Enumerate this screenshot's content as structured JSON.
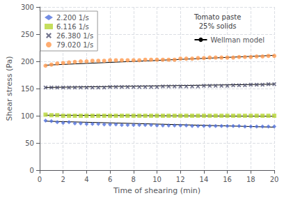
{
  "chart_data": {
    "type": "scatter",
    "xlabel": "Time of shearing (min)",
    "ylabel": "Shear stress (Pa)",
    "xlim": [
      0,
      20
    ],
    "ylim": [
      0,
      300
    ],
    "xticks": [
      0,
      2,
      4,
      6,
      8,
      10,
      12,
      14,
      16,
      18,
      20
    ],
    "yticks": [
      0,
      50,
      100,
      150,
      200,
      250,
      300
    ],
    "grid": true,
    "legend": "upper left",
    "annotation": "Tomato paste\n25% solids",
    "series": [
      {
        "name": "Wellman model",
        "type": "line",
        "color": "black",
        "x": [
          0.5,
          20.0
        ],
        "values": [
          90,
          79
        ]
      },
      {
        "name": "2.200 1/s",
        "type": "scatter",
        "marker": "diamond",
        "x": [
          0.5,
          1.0,
          1.5,
          2.0,
          2.5,
          3.0,
          3.5,
          4.0,
          4.5,
          5.0,
          5.5,
          6.0,
          6.5,
          7.0,
          7.5,
          8.0,
          8.5,
          9.0,
          9.5,
          10.0,
          10.5,
          11.0,
          11.5,
          12.0,
          12.5,
          13.0,
          13.5,
          14.0,
          14.5,
          15.0,
          15.5,
          16.0,
          16.5,
          17.0,
          17.5,
          18.0,
          18.5,
          19.0,
          19.5,
          20.0
        ],
        "values": [
          91,
          90,
          88,
          87,
          88,
          86,
          86,
          85,
          85,
          85,
          84,
          84,
          84,
          83,
          83,
          83,
          83,
          83,
          83,
          82,
          82,
          82,
          82,
          82,
          82,
          81,
          81,
          81,
          81,
          81,
          81,
          81,
          81,
          81,
          80,
          80,
          80,
          80,
          80,
          80
        ]
      },
      {
        "name": "Wellman model",
        "type": "line",
        "color": "black",
        "x": [
          0.5,
          20.0
        ],
        "values": [
          101,
          99
        ]
      },
      {
        "name": "6.116 1/s",
        "type": "scatter",
        "marker": "square",
        "x": [
          0.5,
          1.0,
          1.5,
          2.0,
          2.5,
          3.0,
          3.5,
          4.0,
          4.5,
          5.0,
          5.5,
          6.0,
          6.5,
          7.0,
          7.5,
          8.0,
          8.5,
          9.0,
          9.5,
          10.0,
          10.5,
          11.0,
          11.5,
          12.0,
          12.5,
          13.0,
          13.5,
          14.0,
          14.5,
          15.0,
          15.5,
          16.0,
          16.5,
          17.0,
          17.5,
          18.0,
          18.5,
          19.0,
          19.5,
          20.0
        ],
        "values": [
          102,
          101,
          101,
          100,
          100,
          100,
          100,
          100,
          100,
          100,
          100,
          100,
          100,
          100,
          100,
          100,
          100,
          100,
          100,
          100,
          100,
          100,
          100,
          100,
          100,
          100,
          100,
          100,
          100,
          100,
          100,
          100,
          100,
          100,
          100,
          100,
          100,
          100,
          100,
          100
        ]
      },
      {
        "name": "Wellman model",
        "type": "line",
        "color": "black",
        "x": [
          0.5,
          20.0
        ],
        "values": [
          152,
          158
        ]
      },
      {
        "name": "26.380 1/s",
        "type": "scatter",
        "marker": "x",
        "x": [
          0.5,
          1.0,
          1.5,
          2.0,
          2.5,
          3.0,
          3.5,
          4.0,
          4.5,
          5.0,
          5.5,
          6.0,
          6.5,
          7.0,
          7.5,
          8.0,
          8.5,
          9.0,
          9.5,
          10.0,
          10.5,
          11.0,
          11.5,
          12.0,
          12.5,
          13.0,
          13.5,
          14.0,
          14.5,
          15.0,
          15.5,
          16.0,
          16.5,
          17.0,
          17.5,
          18.0,
          18.5,
          19.0,
          19.5,
          20.0
        ],
        "values": [
          152,
          152,
          152,
          152,
          152,
          152,
          152,
          152,
          152,
          152,
          152,
          153,
          153,
          153,
          153,
          153,
          153,
          153,
          153,
          153,
          154,
          154,
          154,
          154,
          154,
          154,
          154,
          155,
          155,
          155,
          155,
          155,
          156,
          156,
          156,
          157,
          157,
          157,
          158,
          158
        ]
      },
      {
        "name": "Wellman model",
        "type": "line",
        "color": "black",
        "x": [
          0.5,
          20.0
        ],
        "values": [
          193,
          211
        ]
      },
      {
        "name": "79.020 1/s",
        "type": "scatter",
        "marker": "circle",
        "x": [
          0.5,
          1.0,
          1.5,
          2.0,
          2.5,
          3.0,
          3.5,
          4.0,
          4.5,
          5.0,
          5.5,
          6.0,
          6.5,
          7.0,
          7.5,
          8.0,
          8.5,
          9.0,
          9.5,
          10.0,
          10.5,
          11.0,
          11.5,
          12.0,
          12.5,
          13.0,
          13.5,
          14.0,
          14.5,
          15.0,
          15.5,
          16.0,
          16.5,
          17.0,
          17.5,
          18.0,
          18.5,
          19.0,
          19.5,
          20.0
        ],
        "values": [
          192,
          194,
          196,
          197,
          198,
          199,
          200,
          200,
          201,
          201,
          201,
          202,
          202,
          202,
          202,
          202,
          202,
          203,
          203,
          203,
          203,
          203,
          203,
          205,
          205,
          205,
          206,
          206,
          207,
          207,
          207,
          207,
          207,
          208,
          208,
          208,
          209,
          209,
          210,
          210
        ]
      }
    ]
  }
}
